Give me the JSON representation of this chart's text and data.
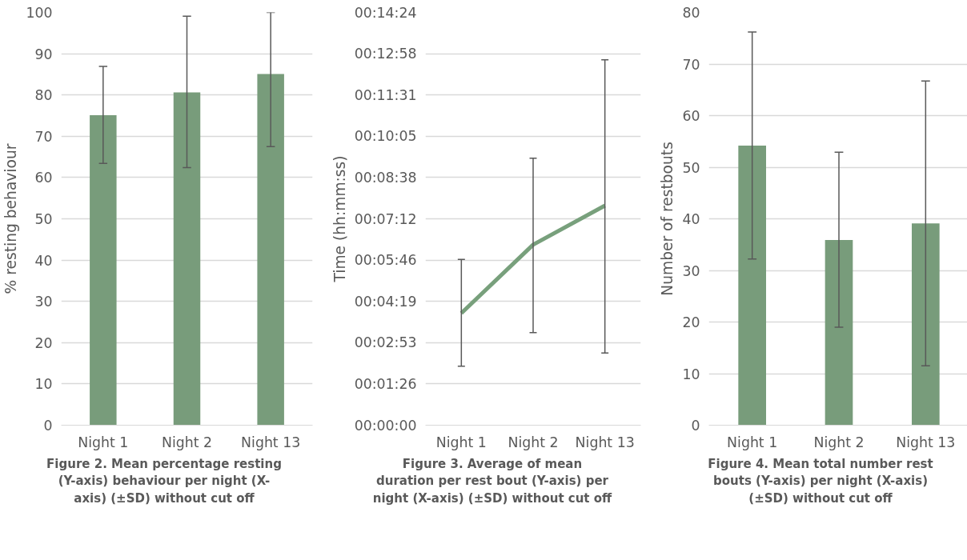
{
  "chart_data": [
    {
      "type": "bar",
      "title": "Figure 2. Mean percentage resting (Y-axis) behaviour per night (X-axis) (±SD) without cut off",
      "ylabel": "% resting behaviour",
      "categories": [
        "Night 1",
        "Night 2",
        "Night 13"
      ],
      "values": [
        75.1,
        80.6,
        85.1
      ],
      "errors": [
        [
          63.4,
          86.9
        ],
        [
          62.4,
          99.1
        ],
        [
          67.5,
          100
        ]
      ],
      "color": "#789c7b",
      "ylim": [
        0,
        100
      ],
      "yticks": [
        0,
        10,
        20,
        30,
        40,
        50,
        60,
        70,
        80,
        90,
        100
      ],
      "grid": "y"
    },
    {
      "type": "line",
      "title": "Figure 3. Average of mean duration per rest bout (Y-axis) per night (X-axis) (±SD) without cut off",
      "ylabel": "Time (hh:mm:ss)",
      "categories": [
        "Night 1",
        "Night 2",
        "Night 13"
      ],
      "values": [
        234.5,
        377.8,
        459.6
      ],
      "errors": [
        [
          123.6,
          347
        ],
        [
          194,
          559
        ],
        [
          151,
          765
        ]
      ],
      "color": "#78a07c",
      "marker": "none",
      "line_style": "solid",
      "ylim": [
        0,
        864
      ],
      "yticks": [
        {
          "value": 0,
          "label": "00:00:00"
        },
        {
          "value": 86.4,
          "label": "00:01:26"
        },
        {
          "value": 172.8,
          "label": "00:02:53"
        },
        {
          "value": 259.2,
          "label": "00:04:19"
        },
        {
          "value": 345.6,
          "label": "00:05:46"
        },
        {
          "value": 432,
          "label": "00:07:12"
        },
        {
          "value": 518.4,
          "label": "00:08:38"
        },
        {
          "value": 604.8,
          "label": "00:10:05"
        },
        {
          "value": 691.2,
          "label": "00:11:31"
        },
        {
          "value": 777.6,
          "label": "00:12:58"
        },
        {
          "value": 864,
          "label": "00:14:24"
        }
      ],
      "grid": "y"
    },
    {
      "type": "bar",
      "title": "Figure 4. Mean total number rest bouts (Y-axis) per night (X-axis) (±SD) without cut off",
      "ylabel": "Number of restbouts",
      "categories": [
        "Night 1",
        "Night 2",
        "Night 13"
      ],
      "values": [
        54.2,
        35.9,
        39.1
      ],
      "errors": [
        [
          32.2,
          76.2
        ],
        [
          19.0,
          52.9
        ],
        [
          11.5,
          66.7
        ]
      ],
      "color": "#789c7b",
      "ylim": [
        0,
        80
      ],
      "yticks": [
        0,
        10,
        20,
        30,
        40,
        50,
        60,
        70,
        80
      ],
      "grid": "y"
    }
  ]
}
